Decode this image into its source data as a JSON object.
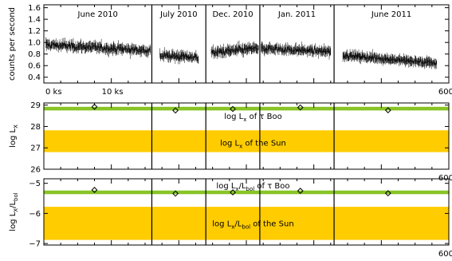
{
  "chart_data": [
    {
      "type": "line",
      "panel": "top",
      "ylabel": "counts per second",
      "ylim": [
        0.3,
        1.65
      ],
      "yticks": [
        0.4,
        0.6,
        0.8,
        1.0,
        1.2,
        1.4,
        1.6
      ],
      "ytick_labels": [
        "0.4",
        "0.6",
        "0.8",
        "1.0",
        "1.2",
        "1.4",
        "1.6"
      ],
      "xlim": [
        0,
        60
      ],
      "xtick_labels": [
        {
          "x": 0,
          "label": "0 ks"
        },
        {
          "x": 10,
          "label": "10 ks"
        },
        {
          "x": 60,
          "label": "600"
        }
      ],
      "segments": [
        {
          "name": "June 2010",
          "x_start": 0,
          "x_end": 16,
          "data_start": 0.3,
          "data_end": 15.8,
          "mean": 0.96,
          "trend_end": 0.86,
          "noise": 0.11,
          "gap_hint": false
        },
        {
          "name": "July 2010",
          "x_start": 16,
          "x_end": 24,
          "data_start": 17.2,
          "data_end": 22.9,
          "mean": 0.78,
          "trend_end": 0.74,
          "noise": 0.1,
          "gap_hint": false
        },
        {
          "name": "Dec. 2010",
          "x_start": 24,
          "x_end": 32,
          "data_start": 24.8,
          "data_end": 31.8,
          "mean": 0.82,
          "trend_end": 0.9,
          "noise": 0.1,
          "gap_hint": false
        },
        {
          "name": "Jan. 2011",
          "x_start": 32,
          "x_end": 43,
          "data_start": 32.2,
          "data_end": 42.5,
          "mean": 0.9,
          "trend_end": 0.84,
          "noise": 0.1,
          "gap_hint": false
        },
        {
          "name": "June 2011",
          "x_start": 43,
          "x_end": 60,
          "data_start": 44.3,
          "data_end": 58.2,
          "mean": 0.78,
          "trend_end": 0.64,
          "noise": 0.08,
          "gap_hint": true
        }
      ]
    },
    {
      "type": "scatter",
      "panel": "middle",
      "ylabel_main": "log L",
      "ylabel_sub": "X",
      "ylim": [
        26,
        29.1
      ],
      "yticks": [
        26,
        27,
        28,
        29
      ],
      "ytick_labels": [
        "26",
        "27",
        "28",
        "29"
      ],
      "xlim": [
        0,
        60
      ],
      "xtick_labels": [
        {
          "x": 60,
          "label": "600"
        }
      ],
      "points": [
        {
          "x": 7.5,
          "y": 28.92
        },
        {
          "x": 19.5,
          "y": 28.75
        },
        {
          "x": 28.0,
          "y": 28.82
        },
        {
          "x": 38.0,
          "y": 28.89
        },
        {
          "x": 51.0,
          "y": 28.76
        }
      ],
      "bands": [
        {
          "name": "tau Boo",
          "y_low": 28.75,
          "y_high": 28.92,
          "color": "#88c425"
        },
        {
          "name": "Sun",
          "y_low": 26.8,
          "y_high": 27.82,
          "color": "#ffcc00"
        }
      ],
      "annotations": [
        {
          "text_main": "log L",
          "text_sub": "x",
          "text_rest": " of τ Boo",
          "at_x": 31.0,
          "at_y": 28.5
        },
        {
          "text_main": "log L",
          "text_sub": "x",
          "text_rest": " of the Sun",
          "at_x": 31.0,
          "at_y": 27.25
        }
      ]
    },
    {
      "type": "scatter",
      "panel": "bottom",
      "ylabel_main": "log L",
      "ylabel_sub1": "X",
      "ylabel_mid": "/L",
      "ylabel_sub2": "bol",
      "ylim": [
        -7.05,
        -4.85
      ],
      "yticks": [
        -7,
        -6,
        -5
      ],
      "ytick_labels": [
        "−7",
        "−6",
        "−5"
      ],
      "xlim": [
        0,
        60
      ],
      "xtick_labels": [
        {
          "x": 60,
          "label": "600"
        }
      ],
      "points": [
        {
          "x": 7.5,
          "y": -5.22
        },
        {
          "x": 19.5,
          "y": -5.34
        },
        {
          "x": 28.0,
          "y": -5.3
        },
        {
          "x": 38.0,
          "y": -5.25
        },
        {
          "x": 51.0,
          "y": -5.33
        }
      ],
      "bands": [
        {
          "name": "tau Boo",
          "y_low": -5.36,
          "y_high": -5.24,
          "color": "#88c425"
        },
        {
          "name": "Sun",
          "y_low": -6.88,
          "y_high": -5.78,
          "color": "#ffcc00"
        }
      ],
      "annotations": [
        {
          "text_main": "log L",
          "text_sub": "x",
          "text_mid": "/L",
          "text_sub2": "bol",
          "text_rest": " of τ Boo",
          "at_x": 31.0,
          "at_y": -5.06
        },
        {
          "text_main": "log L",
          "text_sub": "x",
          "text_mid": "/L",
          "text_sub2": "bol",
          "text_rest": " of the Sun",
          "at_x": 31.0,
          "at_y": -6.32
        }
      ]
    }
  ],
  "colors": {
    "green": "#88c425",
    "yellow": "#ffcc00",
    "axis": "#000000",
    "data": "#000000"
  }
}
